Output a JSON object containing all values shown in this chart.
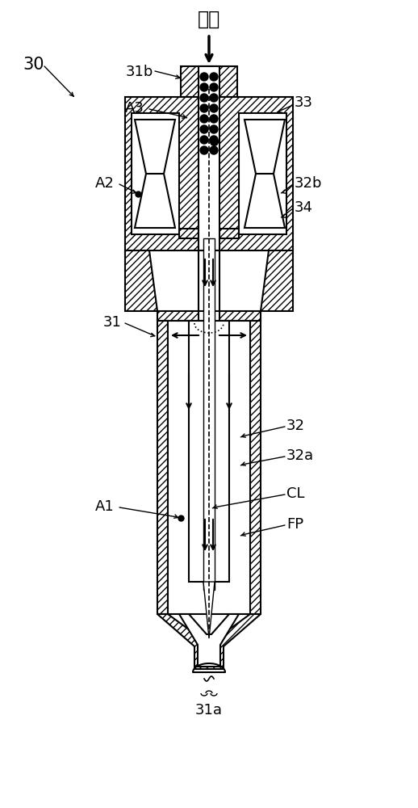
{
  "background_color": "#ffffff",
  "labels": {
    "fuel_label": "燃料",
    "label_30": "30",
    "label_31": "31",
    "label_31a": "31a",
    "label_31b": "31b",
    "label_32": "32",
    "label_32a": "32a",
    "label_32b": "32b",
    "label_33": "33",
    "label_34": "34",
    "label_A1": "A1",
    "label_A2": "A2",
    "label_A3": "A3",
    "label_CL": "CL",
    "label_FP": "FP"
  },
  "figsize": [
    5.18,
    10.0
  ],
  "dpi": 100
}
